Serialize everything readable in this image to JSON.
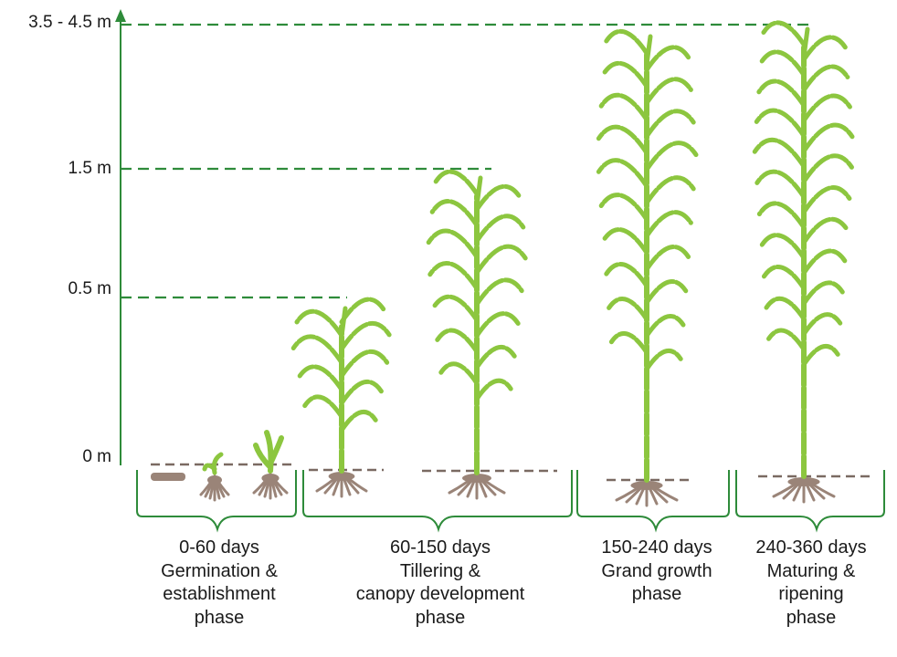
{
  "height_axis": {
    "ticks": [
      {
        "label": "3.5 - 4.5 m"
      },
      {
        "label": "1.5 m"
      },
      {
        "label": "0.5 m"
      },
      {
        "label": "0 m"
      }
    ]
  },
  "stages": [
    {
      "days": "0-60 days",
      "name_lines": [
        "Germination &",
        "establishment",
        "phase"
      ]
    },
    {
      "days": "60-150 days",
      "name_lines": [
        "Tillering &",
        "canopy development",
        "phase"
      ]
    },
    {
      "days": "150-240 days",
      "name_lines": [
        "Grand growth",
        "phase"
      ]
    },
    {
      "days": "240-360 days",
      "name_lines": [
        "Maturing &",
        "ripening",
        "phase"
      ]
    }
  ],
  "colors": {
    "axis": "#2e8b3a",
    "dashed_guide": "#2e8b3a",
    "plant": "#8cc63f",
    "root_soil": "#9a8478",
    "bracket": "#2e8b3a"
  }
}
